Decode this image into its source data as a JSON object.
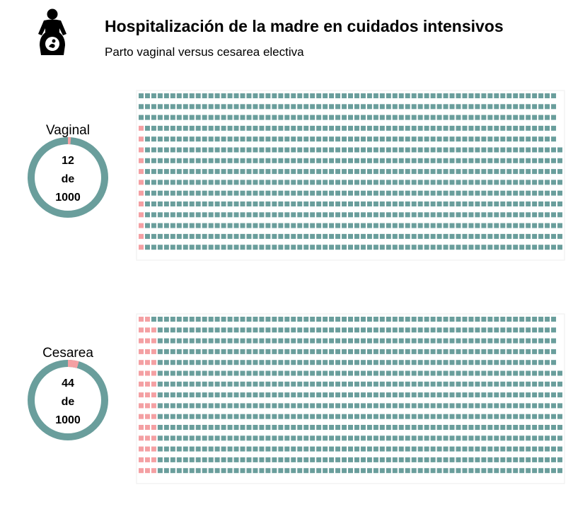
{
  "header": {
    "title": "Hospitalización de la madre en cuidados intensivos",
    "subtitle": "Parto vaginal versus cesarea electiva",
    "icon": "pregnant-woman-icon"
  },
  "colors": {
    "base": "#6a9e9c",
    "highlight": "#f4a0a3",
    "frame": "#eeeeee"
  },
  "chart_data": {
    "type": "waffle",
    "total": 1000,
    "rows": 15,
    "groups": [
      {
        "name": "Vaginal",
        "count": 12,
        "total_label": "1000",
        "connector": "de"
      },
      {
        "name": "Cesarea",
        "count": 44,
        "total_label": "1000",
        "connector": "de"
      }
    ]
  }
}
